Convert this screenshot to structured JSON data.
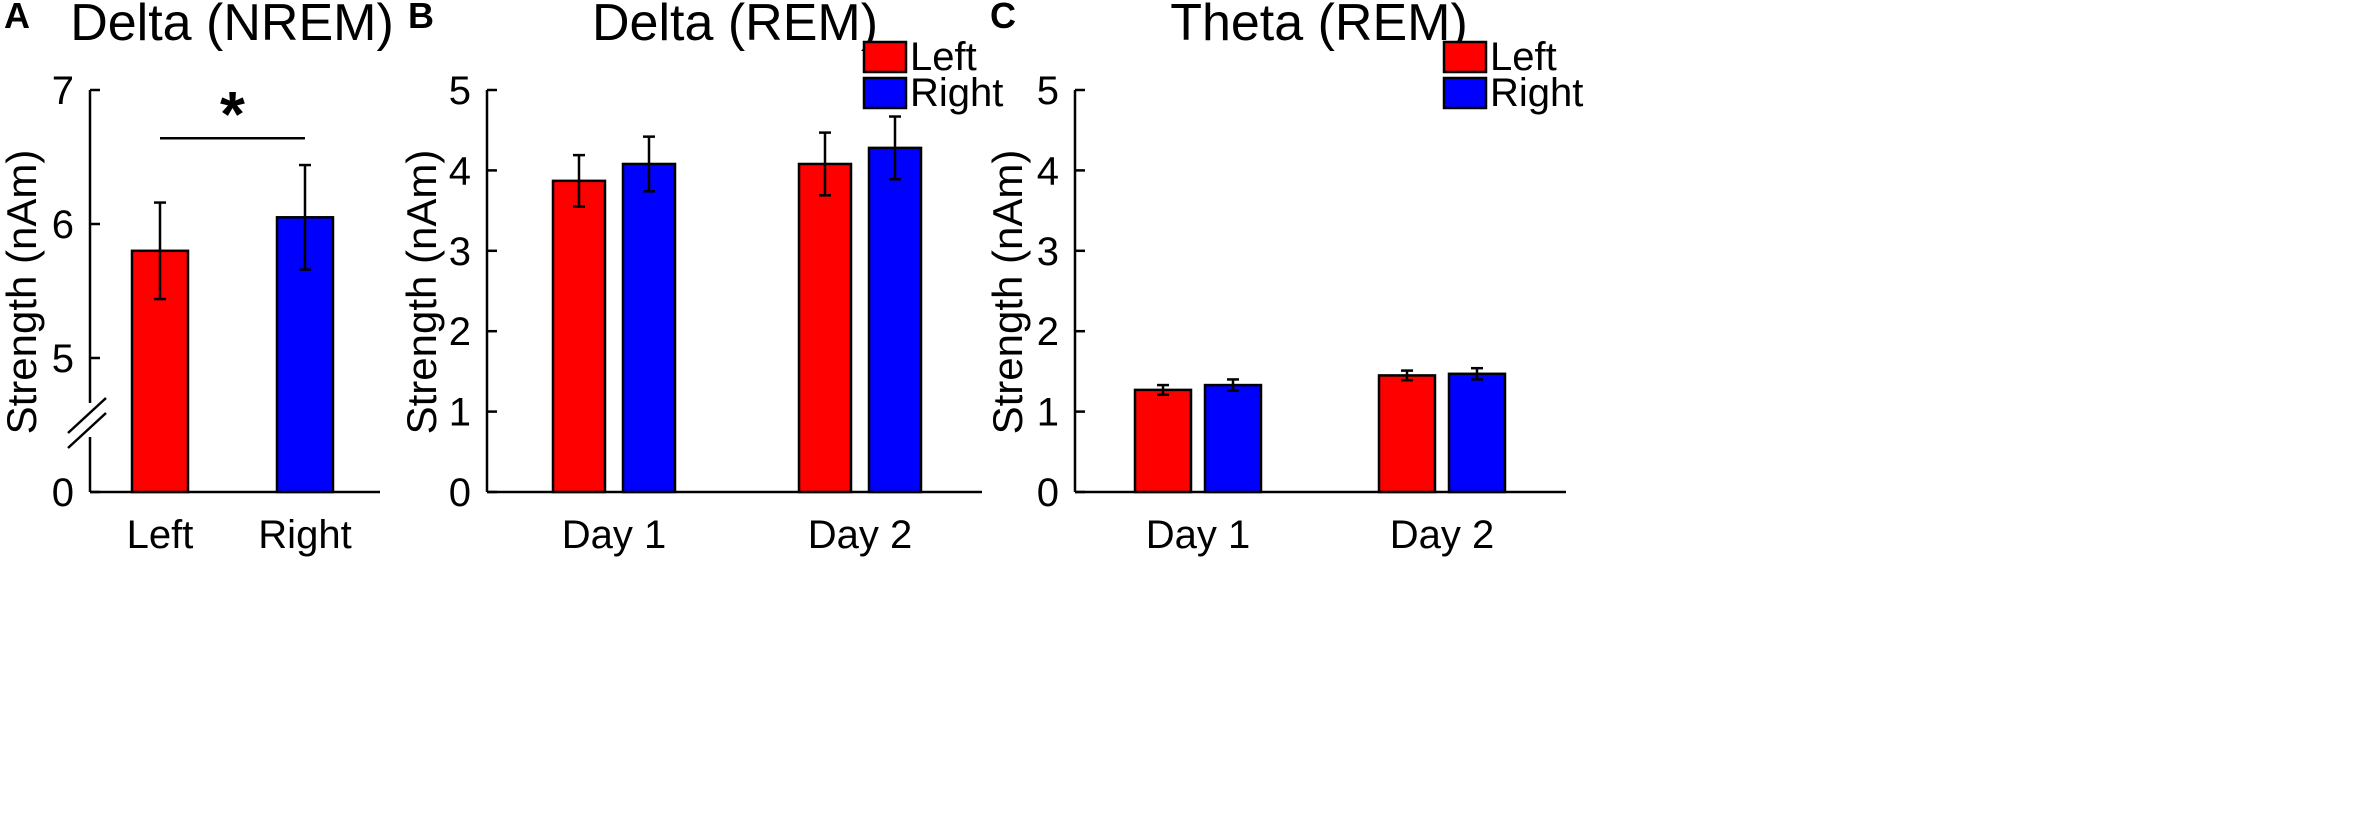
{
  "chart_data": [
    {
      "panel": "A",
      "type": "bar",
      "title": "Delta (NREM)",
      "ylabel": "Strength (nAm)",
      "xlabel": "",
      "categories": [
        "Left",
        "Right"
      ],
      "values": [
        5.8,
        6.05
      ],
      "errors": [
        0.36,
        0.39
      ],
      "colors": [
        "#ff0000",
        "#0000ff"
      ],
      "ylim": [
        4.0,
        7.0
      ],
      "yticks": [
        "0",
        "5",
        "6",
        "7"
      ],
      "axis_break": true,
      "significance": {
        "from": "Left",
        "to": "Right",
        "label": "*",
        "y": 6.64
      }
    },
    {
      "panel": "B",
      "type": "bar",
      "title": "Delta (REM)",
      "ylabel": "Strength (nAm)",
      "xlabel": "",
      "categories": [
        "Day 1",
        "Day 2"
      ],
      "series": [
        {
          "name": "Left",
          "color": "#ff0000",
          "values": [
            3.87,
            4.08
          ],
          "errors": [
            0.32,
            0.39
          ]
        },
        {
          "name": "Right",
          "color": "#0000ff",
          "values": [
            4.08,
            4.28
          ],
          "errors": [
            0.34,
            0.39
          ]
        }
      ],
      "ylim": [
        0,
        5
      ],
      "yticks": [
        "0",
        "1",
        "2",
        "3",
        "4",
        "5"
      ],
      "legend": [
        "Left",
        "Right"
      ],
      "legend_position": "top-right"
    },
    {
      "panel": "C",
      "type": "bar",
      "title": "Theta (REM)",
      "ylabel": "Strength (nAm)",
      "xlabel": "",
      "categories": [
        "Day 1",
        "Day 2"
      ],
      "series": [
        {
          "name": "Left",
          "color": "#ff0000",
          "values": [
            1.27,
            1.45
          ],
          "errors": [
            0.06,
            0.06
          ]
        },
        {
          "name": "Right",
          "color": "#0000ff",
          "values": [
            1.33,
            1.47
          ],
          "errors": [
            0.07,
            0.07
          ]
        }
      ],
      "ylim": [
        0,
        5
      ],
      "yticks": [
        "0",
        "1",
        "2",
        "3",
        "4",
        "5"
      ],
      "legend": [
        "Left",
        "Right"
      ],
      "legend_position": "top-right"
    }
  ]
}
